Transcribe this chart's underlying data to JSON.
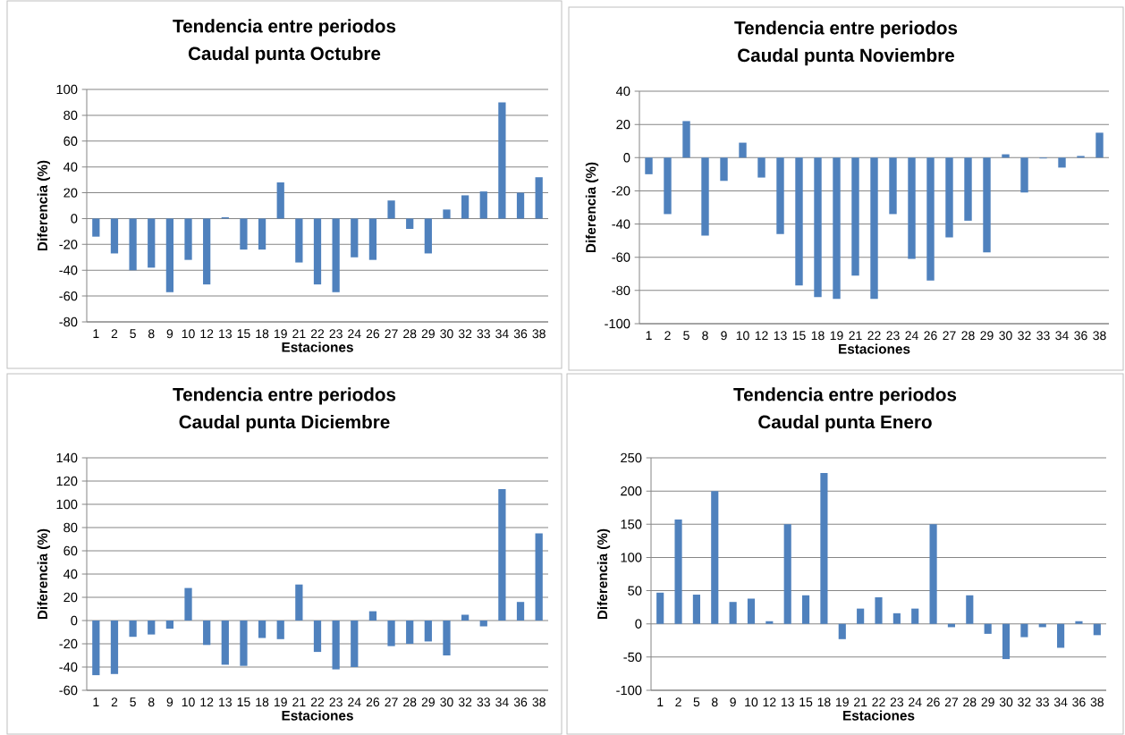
{
  "chart_data": [
    {
      "type": "bar",
      "title": "Tendencia entre periodos",
      "subtitle": "Caudal punta Octubre",
      "xlabel": "Estaciones",
      "ylabel": "Diferencia (%)",
      "categories": [
        "1",
        "2",
        "5",
        "8",
        "9",
        "10",
        "12",
        "13",
        "15",
        "18",
        "19",
        "21",
        "22",
        "23",
        "24",
        "26",
        "27",
        "28",
        "29",
        "30",
        "32",
        "33",
        "34",
        "36",
        "38"
      ],
      "values": [
        -14,
        -27,
        -40,
        -38,
        -57,
        -32,
        -51,
        1,
        -24,
        -24,
        28,
        -34,
        -51,
        -57,
        -30,
        -32,
        14,
        -8,
        -27,
        7,
        18,
        21,
        90,
        20,
        32
      ],
      "color": "#4f81bd",
      "ylim": [
        -80,
        100
      ],
      "yticks": [
        -80,
        -60,
        -40,
        -20,
        0,
        20,
        40,
        60,
        80,
        100
      ],
      "grid": "y"
    },
    {
      "type": "bar",
      "title": "Tendencia entre periodos",
      "subtitle": "Caudal punta Noviembre",
      "xlabel": "Estaciones",
      "ylabel": "Diferencia (%)",
      "categories": [
        "1",
        "2",
        "5",
        "8",
        "9",
        "10",
        "12",
        "13",
        "15",
        "18",
        "19",
        "21",
        "22",
        "23",
        "24",
        "26",
        "27",
        "28",
        "29",
        "30",
        "32",
        "33",
        "34",
        "36",
        "38"
      ],
      "values": [
        -10,
        -34,
        22,
        -47,
        -14,
        9,
        -12,
        -46,
        -77,
        -84,
        -85,
        -71,
        -85,
        -34,
        -61,
        -74,
        -48,
        -38,
        -57,
        2,
        -21,
        -0.5,
        -6,
        1,
        15
      ],
      "color": "#4f81bd",
      "ylim": [
        -100,
        40
      ],
      "yticks": [
        -100,
        -80,
        -60,
        -40,
        -20,
        0,
        20,
        40
      ],
      "grid": "y"
    },
    {
      "type": "bar",
      "title": "Tendencia entre periodos",
      "subtitle": "Caudal punta Diciembre",
      "xlabel": "Estaciones",
      "ylabel": "Diferencia (%)",
      "categories": [
        "1",
        "2",
        "5",
        "8",
        "9",
        "10",
        "12",
        "13",
        "15",
        "18",
        "19",
        "21",
        "22",
        "23",
        "24",
        "26",
        "27",
        "28",
        "29",
        "30",
        "32",
        "33",
        "34",
        "36",
        "38"
      ],
      "values": [
        -47,
        -46,
        -14,
        -12,
        -7,
        28,
        -21,
        -38,
        -39,
        -15,
        -16,
        31,
        -27,
        -42,
        -40,
        8,
        -22,
        -20,
        -18,
        -30,
        5,
        -5,
        113,
        16,
        75
      ],
      "color": "#4f81bd",
      "ylim": [
        -60,
        140
      ],
      "yticks": [
        -60,
        -40,
        -20,
        0,
        20,
        40,
        60,
        80,
        100,
        120,
        140
      ],
      "grid": "y"
    },
    {
      "type": "bar",
      "title": "Tendencia entre periodos",
      "subtitle": "Caudal punta Enero",
      "xlabel": "Estaciones",
      "ylabel": "Diferencia (%)",
      "categories": [
        "1",
        "2",
        "5",
        "8",
        "9",
        "10",
        "12",
        "13",
        "15",
        "18",
        "19",
        "21",
        "22",
        "23",
        "24",
        "26",
        "27",
        "28",
        "29",
        "30",
        "32",
        "33",
        "34",
        "36",
        "38"
      ],
      "values": [
        47,
        157,
        44,
        200,
        33,
        38,
        4,
        150,
        43,
        227,
        -23,
        23,
        40,
        16,
        23,
        150,
        -5,
        43,
        -15,
        -53,
        -20,
        -5,
        -36,
        4,
        -17
      ],
      "color": "#4f81bd",
      "ylim": [
        -100,
        250
      ],
      "yticks": [
        -100,
        -50,
        0,
        50,
        100,
        150,
        200,
        250
      ],
      "grid": "y"
    }
  ]
}
